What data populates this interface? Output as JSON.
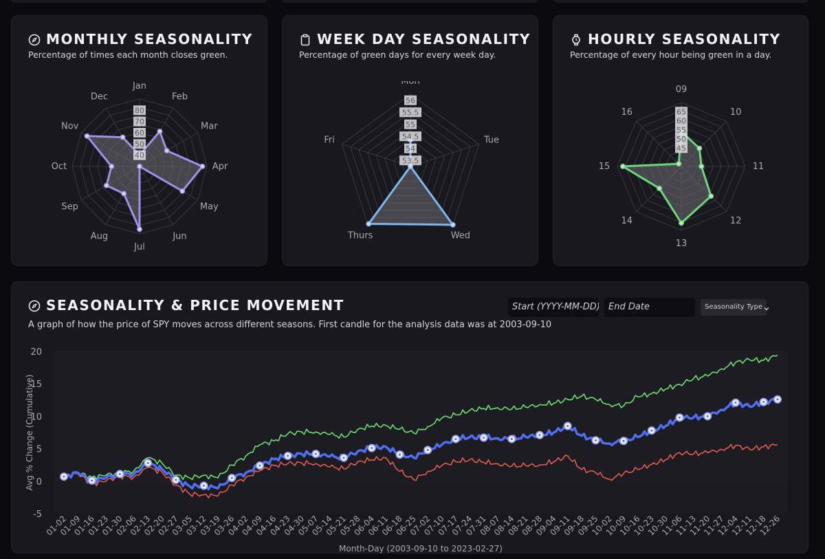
{
  "panels": {
    "monthly": {
      "title": "MONTHLY SEASONALITY",
      "subtitle": "Percentage of times each month closes green.",
      "icon": "compass-icon"
    },
    "weekday": {
      "title": "WEEK DAY SEASONALITY",
      "subtitle": "Percentage of green days for every week day.",
      "icon": "clipboard-icon"
    },
    "hourly": {
      "title": "HOURLY SEASONALITY",
      "subtitle": "Percentage of every hour being green in a day.",
      "icon": "watch-icon"
    },
    "movement": {
      "title": "SEASONALITY & PRICE MOVEMENT",
      "subtitle": "A graph of how the price of SPY moves across different seasons. First candle for the analysis data was at 2003-09-10",
      "icon": "compass-icon",
      "start_placeholder": "Start (YYYY-MM-DD)",
      "end_placeholder": "End Date",
      "seasonality_type_label": "Seasonality Type"
    }
  },
  "chart_data": [
    {
      "type": "radar",
      "id": "monthly",
      "color": "#9b93e8",
      "labels": [
        "Jan",
        "Feb",
        "Mar",
        "Apr",
        "May",
        "Jun",
        "Jul",
        "Aug",
        "Sep",
        "Oct",
        "Nov",
        "Dec"
      ],
      "values": [
        40,
        66,
        58,
        86,
        74,
        30,
        86,
        58,
        64,
        55,
        84,
        60
      ],
      "rmin": 30,
      "rmax": 90,
      "ticks": [
        40,
        50,
        60,
        70,
        80
      ]
    },
    {
      "type": "radar",
      "id": "weekday",
      "color": "#7cb8ee",
      "labels": [
        "Mon",
        "Tue",
        "Wed",
        "Thurs",
        "Fri"
      ],
      "values": [
        54.35,
        53.25,
        56.25,
        56.2,
        53.25
      ],
      "rmin": 53.25,
      "rmax": 56.25,
      "ticks": [
        53.5,
        54.0,
        54.5,
        55.0,
        55.5,
        56.0
      ]
    },
    {
      "type": "radar",
      "id": "hourly",
      "color": "#6bd67a",
      "labels": [
        "09",
        "10",
        "11",
        "12",
        "13",
        "14",
        "15",
        "16"
      ],
      "values": [
        54,
        49,
        46,
        58,
        66,
        52,
        67,
        37
      ],
      "rmin": 35,
      "rmax": 70,
      "ticks": [
        45,
        50,
        55,
        60,
        65
      ]
    },
    {
      "type": "line",
      "id": "movement",
      "ylabel": "Avg % Change (Cumulative)",
      "xlabel": "Month-Day (2003-09-10 to 2023-02-27)",
      "ylim": [
        -5,
        20
      ],
      "yticks": [
        -5,
        0,
        5,
        10,
        15,
        20
      ],
      "x_ticks": [
        "01-02",
        "01-09",
        "01-16",
        "01-23",
        "01-30",
        "02-06",
        "02-13",
        "02-20",
        "02-27",
        "03-05",
        "03-12",
        "03-19",
        "03-26",
        "04-02",
        "04-09",
        "04-16",
        "04-23",
        "04-30",
        "05-07",
        "05-14",
        "05-21",
        "05-28",
        "06-04",
        "06-11",
        "06-18",
        "06-25",
        "07-02",
        "07-10",
        "07-17",
        "07-24",
        "07-31",
        "08-07",
        "08-14",
        "08-21",
        "08-28",
        "09-04",
        "09-11",
        "09-18",
        "09-25",
        "10-02",
        "10-09",
        "10-16",
        "10-23",
        "10-30",
        "11-06",
        "11-13",
        "11-20",
        "11-27",
        "12-04",
        "12-11",
        "12-18",
        "12-26"
      ],
      "series": [
        {
          "color": "#6be070",
          "values": [
            0.7,
            1.3,
            0.6,
            0.9,
            1.3,
            1.6,
            3.6,
            2.8,
            0.9,
            0.5,
            0.9,
            0.5,
            2.5,
            3.9,
            5.6,
            6.2,
            7.3,
            7.6,
            7.6,
            7.2,
            6.8,
            8.0,
            8.5,
            8.6,
            8.0,
            7.4,
            8.4,
            9.7,
            10.2,
            10.9,
            11.2,
            11.3,
            11.1,
            11.4,
            11.8,
            12.0,
            12.6,
            13.1,
            12.6,
            11.8,
            11.6,
            13.0,
            13.5,
            14.2,
            14.9,
            15.8,
            16.2,
            17.3,
            18.3,
            18.7,
            18.6,
            19.4
          ]
        },
        {
          "color": "#4f6ef0",
          "values": [
            0.7,
            1.3,
            0.1,
            0.5,
            1.1,
            1.1,
            2.8,
            1.9,
            0.2,
            -0.8,
            -0.7,
            -1.1,
            0.5,
            1.3,
            2.4,
            3.4,
            3.9,
            4.2,
            4.2,
            3.8,
            3.6,
            4.6,
            5.1,
            5.3,
            4.1,
            3.6,
            4.8,
            5.6,
            6.5,
            6.8,
            6.7,
            6.6,
            6.5,
            6.8,
            7.1,
            7.5,
            8.5,
            7.0,
            6.3,
            5.8,
            6.2,
            6.8,
            7.8,
            8.5,
            9.8,
            9.8,
            10.0,
            11.0,
            12.1,
            11.5,
            12.2,
            12.6
          ]
        },
        {
          "color": "#e05d4f",
          "values": [
            0.6,
            1.1,
            -0.4,
            0.0,
            0.8,
            0.6,
            2.1,
            1.4,
            -0.6,
            -2.0,
            -2.1,
            -2.3,
            -0.6,
            0.6,
            1.6,
            2.4,
            2.7,
            2.8,
            2.7,
            2.2,
            1.9,
            3.0,
            3.3,
            3.6,
            1.5,
            0.2,
            1.5,
            2.4,
            3.0,
            3.3,
            2.9,
            2.7,
            2.3,
            2.4,
            2.5,
            3.0,
            3.9,
            1.8,
            1.3,
            0.3,
            1.2,
            1.8,
            2.6,
            3.3,
            4.4,
            4.2,
            4.4,
            4.9,
            5.5,
            4.9,
            5.3,
            5.6
          ]
        }
      ]
    }
  ]
}
